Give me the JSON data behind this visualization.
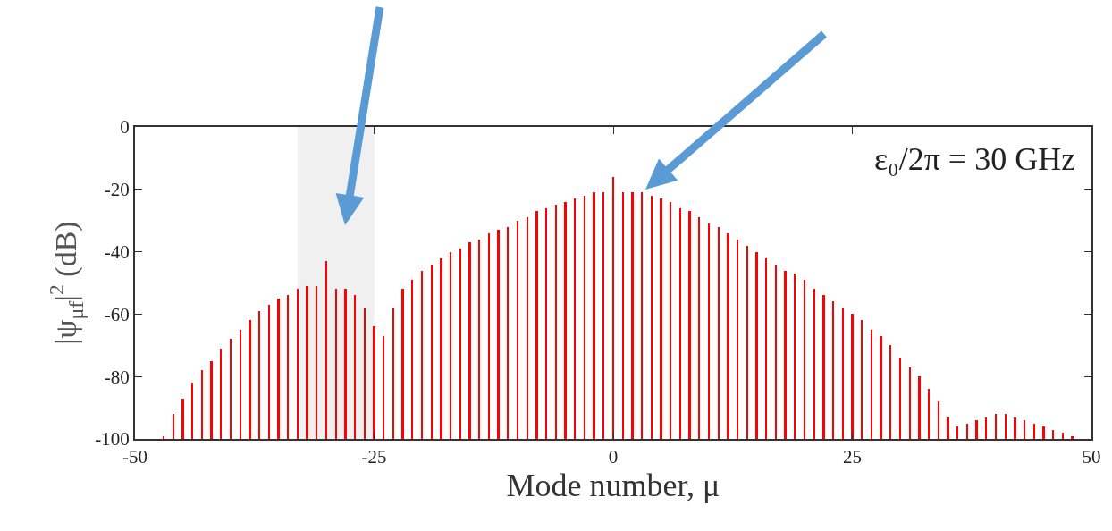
{
  "chart_data": {
    "type": "bar",
    "xlabel": "Mode number, μ",
    "ylabel": "|ψ$_{μf}$|$^{2}$ (dB)",
    "x": [
      -47,
      -46,
      -45,
      -44,
      -43,
      -42,
      -41,
      -40,
      -39,
      -38,
      -37,
      -36,
      -35,
      -34,
      -33,
      -32,
      -31,
      -30,
      -29,
      -28,
      -27,
      -26,
      -25,
      -24,
      -23,
      -22,
      -21,
      -20,
      -19,
      -18,
      -17,
      -16,
      -15,
      -14,
      -13,
      -12,
      -11,
      -10,
      -9,
      -8,
      -7,
      -6,
      -5,
      -4,
      -3,
      -2,
      -1,
      0,
      1,
      2,
      3,
      4,
      5,
      6,
      7,
      8,
      9,
      10,
      11,
      12,
      13,
      14,
      15,
      16,
      17,
      18,
      19,
      20,
      21,
      22,
      23,
      24,
      25,
      26,
      27,
      28,
      29,
      30,
      31,
      32,
      33,
      34,
      35,
      36,
      37,
      38,
      39,
      40,
      41,
      42,
      43,
      44,
      45,
      46,
      47,
      48
    ],
    "values": [
      1,
      8,
      13,
      18,
      22,
      25,
      29,
      32,
      35,
      38,
      41,
      43,
      45,
      46,
      48,
      49,
      49,
      57,
      48,
      48,
      46,
      42,
      36,
      33,
      42,
      48,
      51,
      54,
      56,
      58,
      60,
      61,
      63,
      64,
      66,
      67,
      68,
      70,
      71,
      73,
      74,
      75,
      76,
      77,
      78,
      79,
      79,
      84,
      79,
      79,
      79,
      78,
      77,
      76,
      74,
      73,
      71,
      69,
      68,
      66,
      64,
      62,
      60,
      58,
      56,
      54,
      53,
      51,
      48,
      46,
      44,
      42,
      40,
      38,
      35,
      33,
      30,
      26,
      23,
      20,
      16,
      12,
      7,
      4,
      5,
      6,
      7,
      8,
      8,
      7,
      6,
      5,
      4,
      3,
      2,
      1
    ],
    "base": [
      -100,
      -100,
      -100,
      -100,
      -100,
      -100,
      -100,
      -100,
      -100,
      -100,
      -100,
      -100,
      -100,
      -100,
      -100,
      -100,
      -100,
      -100,
      -100,
      -100,
      -100,
      -100,
      -100,
      -100,
      -100,
      -100,
      -100,
      -100,
      -100,
      -100,
      -100,
      -100,
      -100,
      -100,
      -100,
      -100,
      -100,
      -100,
      -100,
      -100,
      -100,
      -100,
      -100,
      -100,
      -100,
      -100,
      -100,
      -100,
      -100,
      -100,
      -100,
      -100,
      -100,
      -100,
      -100,
      -100,
      -100,
      -100,
      -100,
      -100,
      -100,
      -100,
      -100,
      -100,
      -100,
      -100,
      -100,
      -100,
      -100,
      -100,
      -100,
      -100,
      -100,
      -100,
      -100,
      -100,
      -100,
      -100,
      -100,
      -100,
      -100,
      -100,
      -100,
      -100,
      -100,
      -100,
      -100,
      -100,
      -100,
      -100,
      -100,
      -100,
      -100,
      -100,
      -100,
      -100
    ],
    "color": "#ff0000",
    "xlim": [
      -50,
      50
    ],
    "xticks": [
      -50,
      -25,
      0,
      25,
      50
    ],
    "ylim": [
      -100,
      0
    ],
    "yticks": [
      -100,
      -80,
      -60,
      -40,
      -20,
      0
    ],
    "bands": [
      {
        "axis": "x",
        "from": -33,
        "to": -25,
        "color": "#f0f0f0"
      }
    ],
    "annotations": [
      "ε₀/2π = 30 GHz"
    ],
    "grid": false
  }
}
